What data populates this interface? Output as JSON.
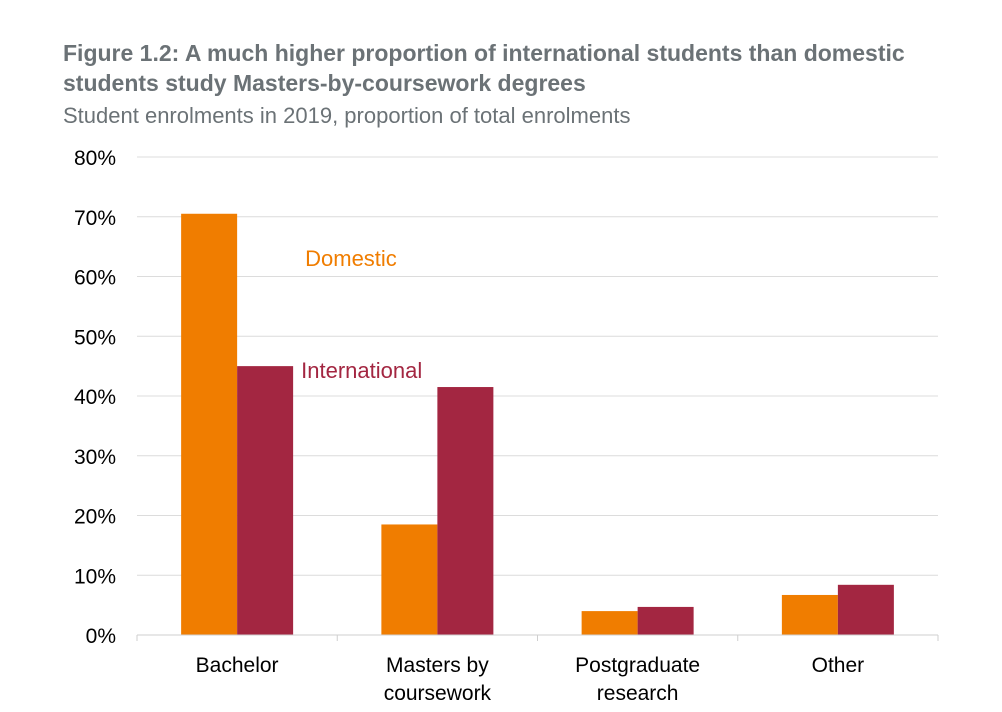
{
  "chart_data": {
    "type": "bar",
    "title": "Figure 1.2: A much higher proportion of international students than domestic students study Masters-by-coursework degrees",
    "subtitle": "Student enrolments in 2019, proportion of total enrolments",
    "categories": [
      [
        "Bachelor"
      ],
      [
        "Masters by",
        "coursework"
      ],
      [
        "Postgraduate",
        "research"
      ],
      [
        "Other"
      ]
    ],
    "series": [
      {
        "name": "Domestic",
        "color": "#f07d00",
        "values": [
          70.5,
          18.5,
          4.0,
          6.7
        ]
      },
      {
        "name": "International",
        "color": "#a32641",
        "values": [
          45.0,
          41.5,
          4.7,
          8.4
        ]
      }
    ],
    "y_ticks": [
      "0%",
      "10%",
      "20%",
      "30%",
      "40%",
      "50%",
      "60%",
      "70%",
      "80%"
    ],
    "ylim": [
      0,
      80
    ],
    "grid": true,
    "legend": "inline labels beside bars"
  }
}
